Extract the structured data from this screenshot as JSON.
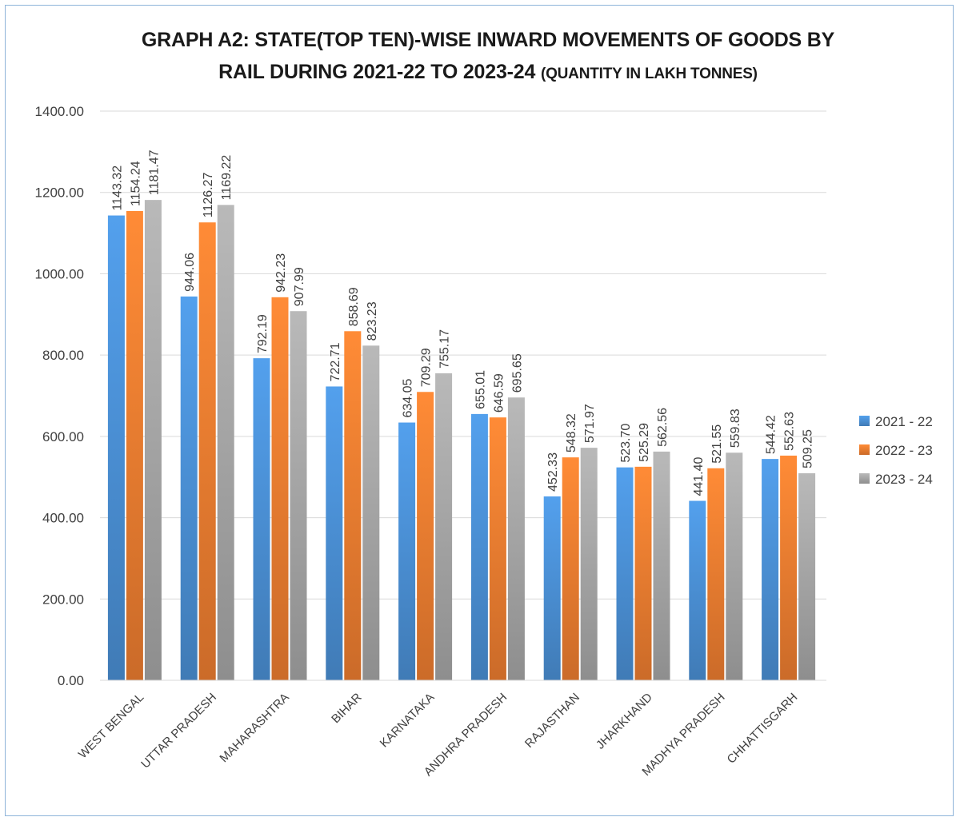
{
  "chart_data": {
    "type": "bar",
    "title_main": "GRAPH A2: STATE(TOP TEN)-WISE INWARD MOVEMENTS OF GOODS BY",
    "title_line2": "RAIL DURING 2021-22 TO 2023-24",
    "title_suffix": "(QUANTITY IN LAKH TONNES)",
    "categories": [
      "WEST BENGAL",
      "UTTAR PRADESH",
      "MAHARASHTRA",
      "BIHAR",
      "KARNATAKA",
      "ANDHRA PRADESH",
      "RAJASTHAN",
      "JHARKHAND",
      "MADHYA PRADESH",
      "CHHATTISGARH"
    ],
    "series": [
      {
        "name": "2021 - 22",
        "color": "#4a8fd4",
        "values": [
          1143.32,
          944.06,
          792.19,
          722.71,
          634.05,
          655.01,
          452.33,
          523.7,
          441.4,
          544.42
        ],
        "labels": [
          "1143.32",
          "944.06",
          "792.19",
          "722.71",
          "634.05",
          "655.01",
          "452.33",
          "523.70",
          "441.40",
          "544.42"
        ]
      },
      {
        "name": "2022 - 23",
        "color": "#ec7c30",
        "values": [
          1154.24,
          1126.27,
          942.23,
          858.69,
          709.29,
          646.59,
          548.32,
          525.29,
          521.55,
          552.63
        ],
        "labels": [
          "1154.24",
          "1126.27",
          "942.23",
          "858.69",
          "709.29",
          "646.59",
          "548.32",
          "525.29",
          "521.55",
          "552.63"
        ]
      },
      {
        "name": "2023 - 24",
        "color": "#a5a5a5",
        "values": [
          1181.47,
          1169.22,
          907.99,
          823.23,
          755.17,
          695.65,
          571.97,
          562.56,
          559.83,
          509.25
        ],
        "labels": [
          "1181.47",
          "1169.22",
          "907.99",
          "823.23",
          "755.17",
          "695.65",
          "571.97",
          "562.56",
          "559.83",
          "509.25"
        ]
      }
    ],
    "ylim": [
      0,
      1400
    ],
    "yticks": [
      "0.00",
      "200.00",
      "400.00",
      "600.00",
      "800.00",
      "1000.00",
      "1200.00",
      "1400.00"
    ],
    "ytick_values": [
      0,
      200,
      400,
      600,
      800,
      1000,
      1200,
      1400
    ],
    "grid": true,
    "legend_position": "right"
  }
}
